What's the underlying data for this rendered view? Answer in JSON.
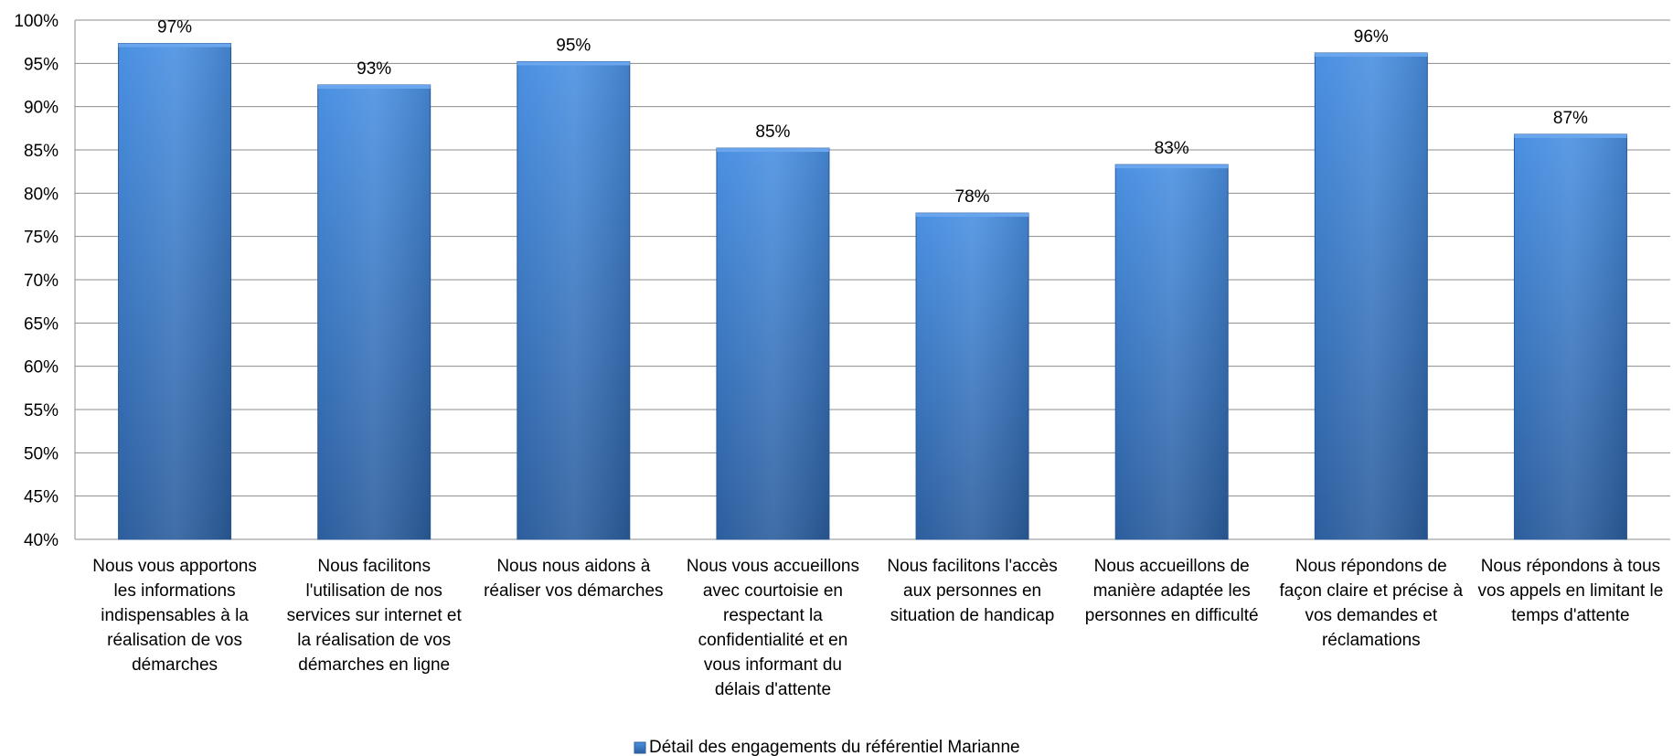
{
  "chart_data": {
    "type": "bar",
    "categories": [
      "Nous vous apportons les informations indispensables à la réalisation de vos démarches",
      "Nous facilitons l'utilisation de nos services sur internet et la réalisation de vos démarches en ligne",
      "Nous nous aidons à réaliser vos démarches",
      "Nous vous accueillons avec courtoisie en respectant la confidentialité et en vous informant du délais d'attente",
      "Nous facilitons l'accès aux personnes en situation de handicap",
      "Nous accueillons de manière adaptée les personnes en difficulté",
      "Nous répondons de façon claire et précise à vos demandes et réclamations",
      "Nous répondons à tous vos appels en limitant le temps d'attente"
    ],
    "category_lines": [
      [
        "Nous vous apportons",
        "les informations",
        "indispensables à la",
        "réalisation de vos",
        "démarches"
      ],
      [
        "Nous facilitons",
        "l'utilisation de nos",
        "services sur internet et",
        "la réalisation de vos",
        "démarches en ligne"
      ],
      [
        "Nous nous aidons à",
        "réaliser vos démarches"
      ],
      [
        "Nous vous accueillons",
        "avec courtoisie en",
        "respectant la",
        "confidentialité et en",
        "vous informant du",
        "délais d'attente"
      ],
      [
        "Nous facilitons l'accès",
        "aux personnes en",
        "situation de handicap"
      ],
      [
        "Nous accueillons de",
        "manière adaptée les",
        "personnes en difficulté"
      ],
      [
        "Nous répondons de",
        "façon claire et précise à",
        "vos demandes et",
        "réclamations"
      ],
      [
        "Nous répondons à tous",
        "vos appels en limitant le",
        "temps d'attente"
      ]
    ],
    "series": [
      {
        "name": "Détail des engagements du référentiel Marianne",
        "values": [
          97.3,
          92.5,
          95.2,
          85.2,
          77.7,
          83.3,
          96.2,
          86.8
        ],
        "data_labels": [
          "97%",
          "93%",
          "95%",
          "85%",
          "78%",
          "83%",
          "96%",
          "87%"
        ]
      }
    ],
    "ylim": [
      40,
      100
    ],
    "yticks": [
      40,
      45,
      50,
      55,
      60,
      65,
      70,
      75,
      80,
      85,
      90,
      95,
      100
    ],
    "ytick_labels": [
      "40%",
      "45%",
      "50%",
      "55%",
      "60%",
      "65%",
      "70%",
      "75%",
      "80%",
      "85%",
      "90%",
      "95%",
      "100%"
    ],
    "grid": true,
    "legend": "bottom-center",
    "colors": {
      "bar_light": "#4a90e2",
      "bar_dark": "#2c5e9e",
      "grid": "#8c8c8c"
    },
    "title": "",
    "xlabel": "",
    "ylabel": ""
  }
}
